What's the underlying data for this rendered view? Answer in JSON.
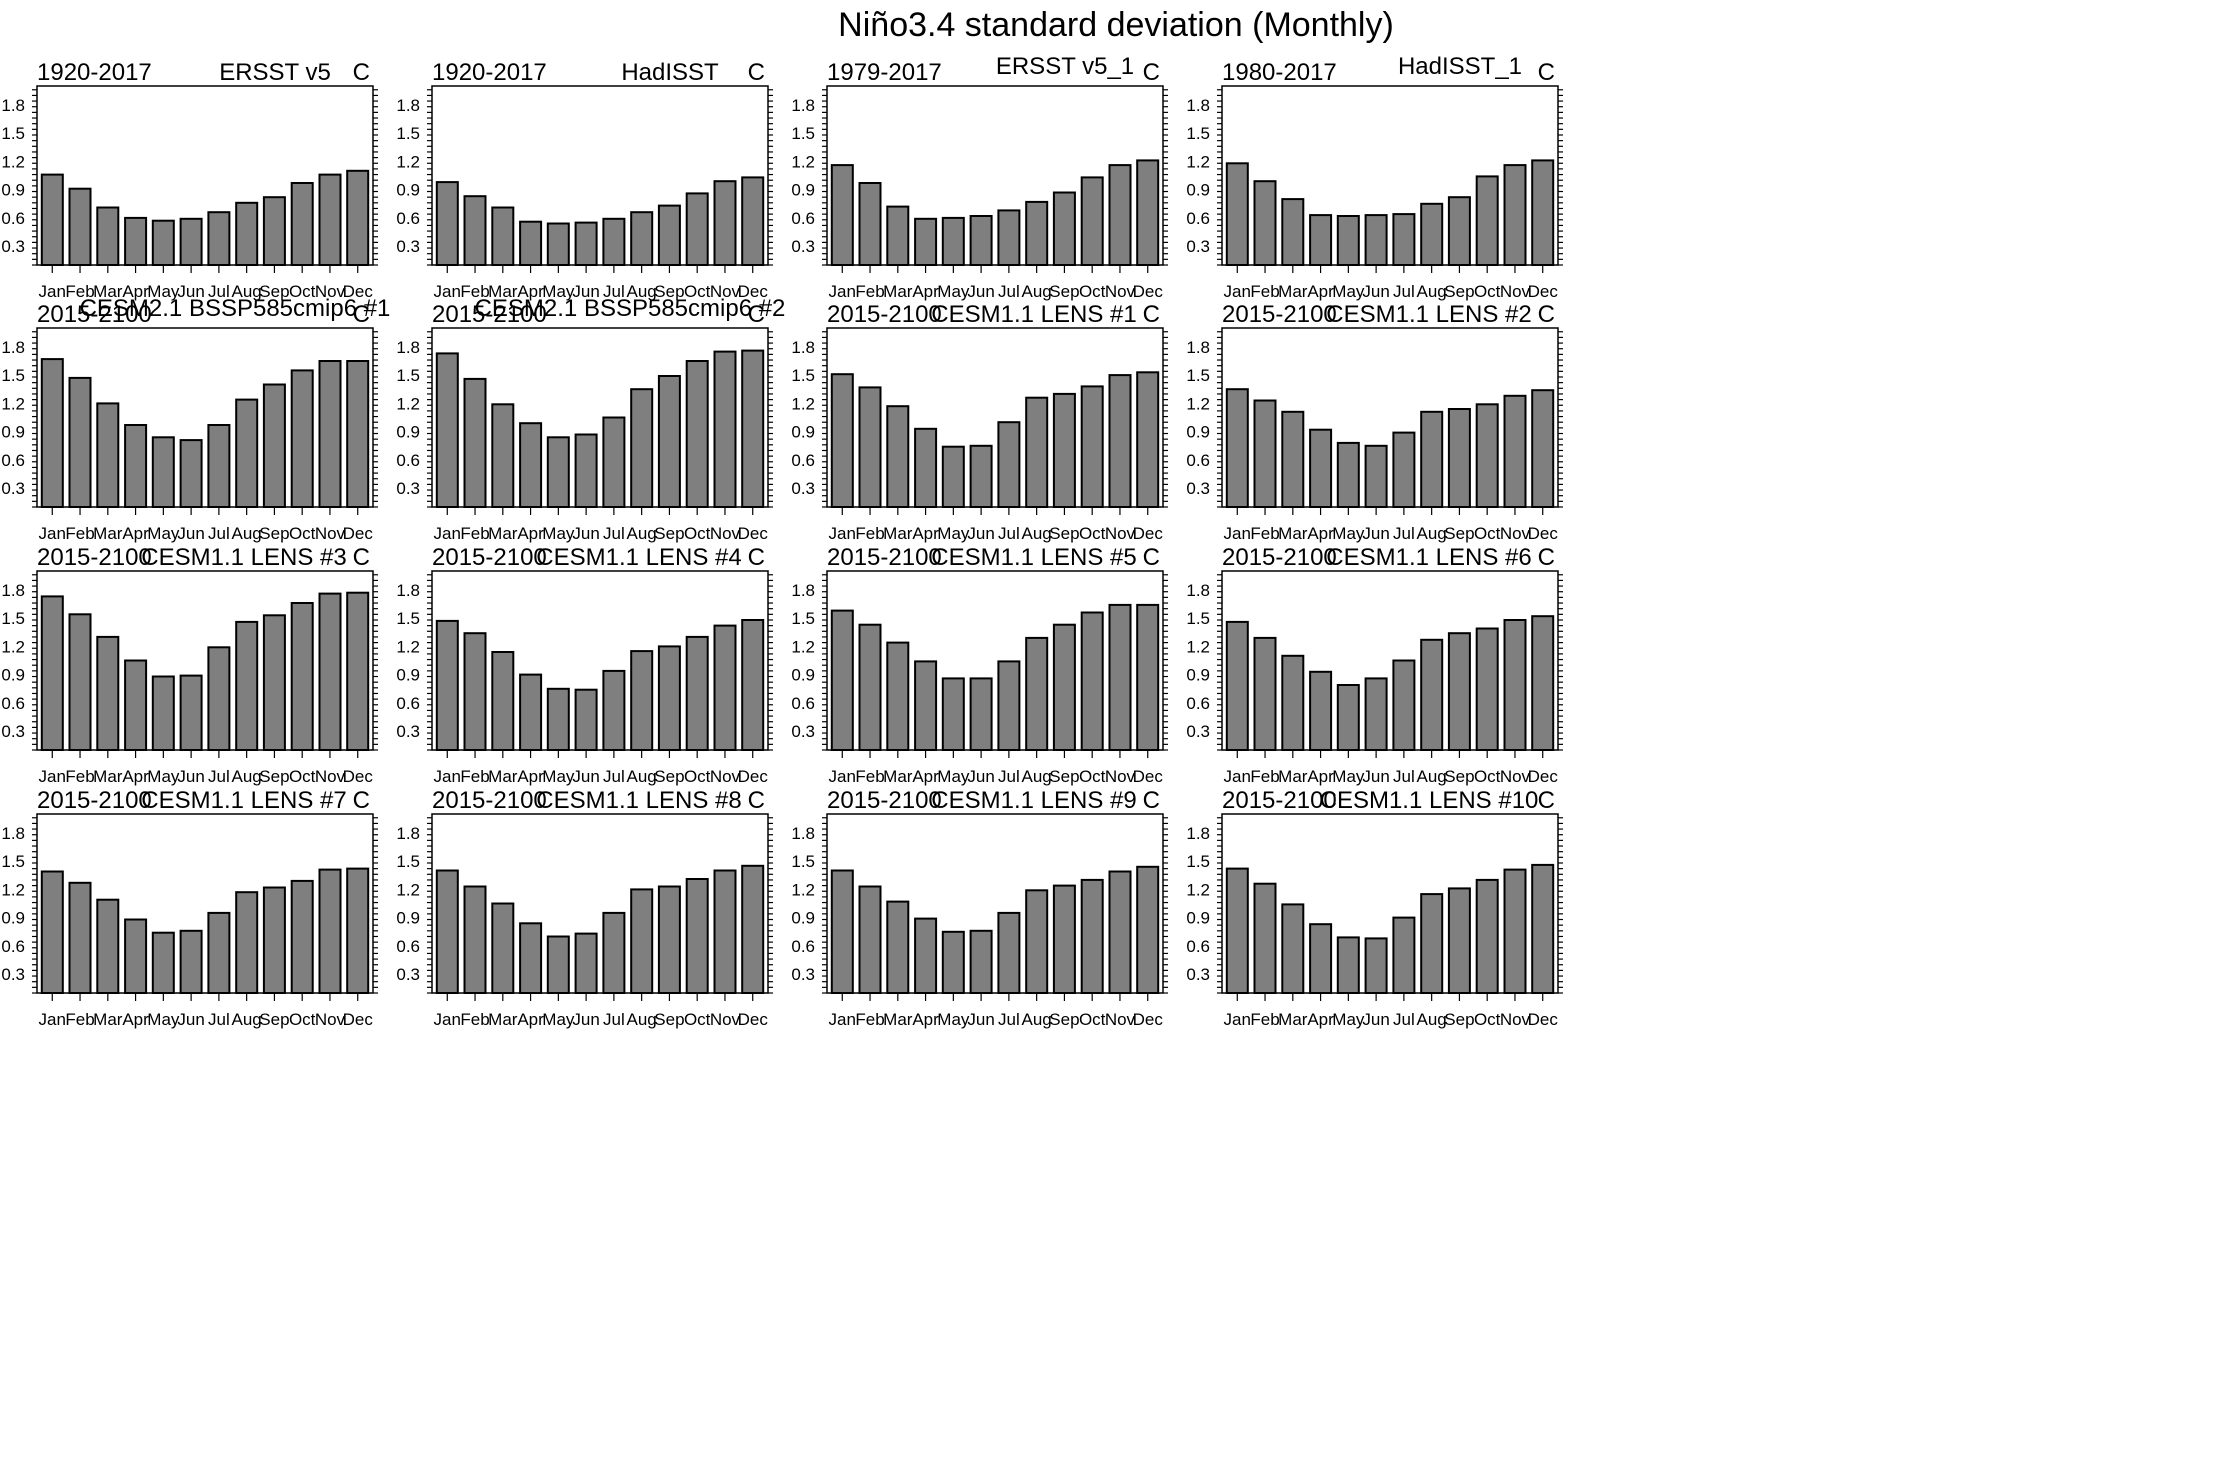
{
  "figure_title": "Niño3.4 standard deviation (Monthly)",
  "colors": {
    "bar_fill": "#7f7f7f",
    "bar_edge": "#000000",
    "frame": "#000000",
    "background": "#ffffff"
  },
  "chart_data": [
    {
      "type": "bar",
      "period": "1920-2017",
      "title": "ERSST v5",
      "units": "C",
      "categories": [
        "Jan",
        "Feb",
        "Mar",
        "Apr",
        "May",
        "Jun",
        "Jul",
        "Aug",
        "Sep",
        "Oct",
        "Nov",
        "Dec"
      ],
      "values": [
        1.06,
        0.91,
        0.71,
        0.6,
        0.57,
        0.59,
        0.66,
        0.76,
        0.82,
        0.97,
        1.06,
        1.1
      ],
      "ylim": [
        0.1,
        2.0
      ],
      "yticks": [
        "0.3",
        "0.6",
        "0.9",
        "1.2",
        "1.5",
        "1.8"
      ]
    },
    {
      "type": "bar",
      "period": "1920-2017",
      "title": "HadISST",
      "units": "C",
      "categories": [
        "Jan",
        "Feb",
        "Mar",
        "Apr",
        "May",
        "Jun",
        "Jul",
        "Aug",
        "Sep",
        "Oct",
        "Nov",
        "Dec"
      ],
      "values": [
        0.98,
        0.83,
        0.71,
        0.56,
        0.54,
        0.55,
        0.59,
        0.66,
        0.73,
        0.86,
        0.99,
        1.03
      ],
      "ylim": [
        0.1,
        2.0
      ],
      "yticks": [
        "0.3",
        "0.6",
        "0.9",
        "1.2",
        "1.5",
        "1.8"
      ]
    },
    {
      "type": "bar",
      "period": "1979-2017",
      "title": "ERSST v5_1",
      "units": "C",
      "categories": [
        "Jan",
        "Feb",
        "Mar",
        "Apr",
        "May",
        "Jun",
        "Jul",
        "Aug",
        "Sep",
        "Oct",
        "Nov",
        "Dec"
      ],
      "values": [
        1.16,
        0.97,
        0.72,
        0.59,
        0.6,
        0.62,
        0.68,
        0.77,
        0.87,
        1.03,
        1.16,
        1.21
      ],
      "ylim": [
        0.1,
        2.0
      ],
      "yticks": [
        "0.3",
        "0.6",
        "0.9",
        "1.2",
        "1.5",
        "1.8"
      ]
    },
    {
      "type": "bar",
      "period": "1980-2017",
      "title": "HadISST_1",
      "units": "C",
      "categories": [
        "Jan",
        "Feb",
        "Mar",
        "Apr",
        "May",
        "Jun",
        "Jul",
        "Aug",
        "Sep",
        "Oct",
        "Nov",
        "Dec"
      ],
      "values": [
        1.18,
        0.99,
        0.8,
        0.63,
        0.62,
        0.63,
        0.64,
        0.75,
        0.82,
        1.04,
        1.16,
        1.21
      ],
      "ylim": [
        0.1,
        2.0
      ],
      "yticks": [
        "0.3",
        "0.6",
        "0.9",
        "1.2",
        "1.5",
        "1.8"
      ]
    },
    {
      "type": "bar",
      "period": "2015-2100",
      "title": "CESM2.1 BSSP585cmip6 #1",
      "units": "C",
      "categories": [
        "Jan",
        "Feb",
        "Mar",
        "Apr",
        "May",
        "Jun",
        "Jul",
        "Aug",
        "Sep",
        "Oct",
        "Nov",
        "Dec"
      ],
      "values": [
        1.67,
        1.47,
        1.2,
        0.97,
        0.84,
        0.81,
        0.97,
        1.24,
        1.4,
        1.55,
        1.65,
        1.65
      ],
      "ylim": [
        0.1,
        2.0
      ],
      "yticks": [
        "0.3",
        "0.6",
        "0.9",
        "1.2",
        "1.5",
        "1.8"
      ]
    },
    {
      "type": "bar",
      "period": "2015-2100",
      "title": "CESM2.1 BSSP585cmip6 #2",
      "units": "C",
      "categories": [
        "Jan",
        "Feb",
        "Mar",
        "Apr",
        "May",
        "Jun",
        "Jul",
        "Aug",
        "Sep",
        "Oct",
        "Nov",
        "Dec"
      ],
      "values": [
        1.73,
        1.46,
        1.19,
        0.99,
        0.84,
        0.87,
        1.05,
        1.35,
        1.49,
        1.65,
        1.75,
        1.76
      ],
      "ylim": [
        0.1,
        2.0
      ],
      "yticks": [
        "0.3",
        "0.6",
        "0.9",
        "1.2",
        "1.5",
        "1.8"
      ]
    },
    {
      "type": "bar",
      "period": "2015-2100",
      "title": "CESM1.1 LENS #1",
      "units": "C",
      "categories": [
        "Jan",
        "Feb",
        "Mar",
        "Apr",
        "May",
        "Jun",
        "Jul",
        "Aug",
        "Sep",
        "Oct",
        "Nov",
        "Dec"
      ],
      "values": [
        1.51,
        1.37,
        1.17,
        0.93,
        0.74,
        0.75,
        1.0,
        1.26,
        1.3,
        1.38,
        1.5,
        1.53
      ],
      "ylim": [
        0.1,
        2.0
      ],
      "yticks": [
        "0.3",
        "0.6",
        "0.9",
        "1.2",
        "1.5",
        "1.8"
      ]
    },
    {
      "type": "bar",
      "period": "2015-2100",
      "title": "CESM1.1 LENS #2",
      "units": "C",
      "categories": [
        "Jan",
        "Feb",
        "Mar",
        "Apr",
        "May",
        "Jun",
        "Jul",
        "Aug",
        "Sep",
        "Oct",
        "Nov",
        "Dec"
      ],
      "values": [
        1.35,
        1.23,
        1.11,
        0.92,
        0.78,
        0.75,
        0.89,
        1.11,
        1.14,
        1.19,
        1.28,
        1.34
      ],
      "ylim": [
        0.1,
        2.0
      ],
      "yticks": [
        "0.3",
        "0.6",
        "0.9",
        "1.2",
        "1.5",
        "1.8"
      ]
    },
    {
      "type": "bar",
      "period": "2015-2100",
      "title": "CESM1.1 LENS #3",
      "units": "C",
      "categories": [
        "Jan",
        "Feb",
        "Mar",
        "Apr",
        "May",
        "Jun",
        "Jul",
        "Aug",
        "Sep",
        "Oct",
        "Nov",
        "Dec"
      ],
      "values": [
        1.73,
        1.54,
        1.3,
        1.05,
        0.88,
        0.89,
        1.19,
        1.46,
        1.53,
        1.66,
        1.76,
        1.77
      ],
      "ylim": [
        0.1,
        2.0
      ],
      "yticks": [
        "0.3",
        "0.6",
        "0.9",
        "1.2",
        "1.5",
        "1.8"
      ]
    },
    {
      "type": "bar",
      "period": "2015-2100",
      "title": "CESM1.1 LENS #4",
      "units": "C",
      "categories": [
        "Jan",
        "Feb",
        "Mar",
        "Apr",
        "May",
        "Jun",
        "Jul",
        "Aug",
        "Sep",
        "Oct",
        "Nov",
        "Dec"
      ],
      "values": [
        1.47,
        1.34,
        1.14,
        0.9,
        0.75,
        0.74,
        0.94,
        1.15,
        1.2,
        1.3,
        1.42,
        1.48
      ],
      "ylim": [
        0.1,
        2.0
      ],
      "yticks": [
        "0.3",
        "0.6",
        "0.9",
        "1.2",
        "1.5",
        "1.8"
      ]
    },
    {
      "type": "bar",
      "period": "2015-2100",
      "title": "CESM1.1 LENS #5",
      "units": "C",
      "categories": [
        "Jan",
        "Feb",
        "Mar",
        "Apr",
        "May",
        "Jun",
        "Jul",
        "Aug",
        "Sep",
        "Oct",
        "Nov",
        "Dec"
      ],
      "values": [
        1.58,
        1.43,
        1.24,
        1.04,
        0.86,
        0.86,
        1.04,
        1.29,
        1.43,
        1.56,
        1.64,
        1.64
      ],
      "ylim": [
        0.1,
        2.0
      ],
      "yticks": [
        "0.3",
        "0.6",
        "0.9",
        "1.2",
        "1.5",
        "1.8"
      ]
    },
    {
      "type": "bar",
      "period": "2015-2100",
      "title": "CESM1.1 LENS #6",
      "units": "C",
      "categories": [
        "Jan",
        "Feb",
        "Mar",
        "Apr",
        "May",
        "Jun",
        "Jul",
        "Aug",
        "Sep",
        "Oct",
        "Nov",
        "Dec"
      ],
      "values": [
        1.46,
        1.29,
        1.1,
        0.93,
        0.79,
        0.86,
        1.05,
        1.27,
        1.34,
        1.39,
        1.48,
        1.52
      ],
      "ylim": [
        0.1,
        2.0
      ],
      "yticks": [
        "0.3",
        "0.6",
        "0.9",
        "1.2",
        "1.5",
        "1.8"
      ]
    },
    {
      "type": "bar",
      "period": "2015-2100",
      "title": "CESM1.1 LENS #7",
      "units": "C",
      "categories": [
        "Jan",
        "Feb",
        "Mar",
        "Apr",
        "May",
        "Jun",
        "Jul",
        "Aug",
        "Sep",
        "Oct",
        "Nov",
        "Dec"
      ],
      "values": [
        1.39,
        1.27,
        1.09,
        0.88,
        0.74,
        0.76,
        0.95,
        1.17,
        1.22,
        1.29,
        1.41,
        1.42
      ],
      "ylim": [
        0.1,
        2.0
      ],
      "yticks": [
        "0.3",
        "0.6",
        "0.9",
        "1.2",
        "1.5",
        "1.8"
      ]
    },
    {
      "type": "bar",
      "period": "2015-2100",
      "title": "CESM1.1 LENS #8",
      "units": "C",
      "categories": [
        "Jan",
        "Feb",
        "Mar",
        "Apr",
        "May",
        "Jun",
        "Jul",
        "Aug",
        "Sep",
        "Oct",
        "Nov",
        "Dec"
      ],
      "values": [
        1.4,
        1.23,
        1.05,
        0.84,
        0.7,
        0.73,
        0.95,
        1.2,
        1.23,
        1.31,
        1.4,
        1.45
      ],
      "ylim": [
        0.1,
        2.0
      ],
      "yticks": [
        "0.3",
        "0.6",
        "0.9",
        "1.2",
        "1.5",
        "1.8"
      ]
    },
    {
      "type": "bar",
      "period": "2015-2100",
      "title": "CESM1.1 LENS #9",
      "units": "C",
      "categories": [
        "Jan",
        "Feb",
        "Mar",
        "Apr",
        "May",
        "Jun",
        "Jul",
        "Aug",
        "Sep",
        "Oct",
        "Nov",
        "Dec"
      ],
      "values": [
        1.4,
        1.23,
        1.07,
        0.89,
        0.75,
        0.76,
        0.95,
        1.19,
        1.24,
        1.3,
        1.39,
        1.44
      ],
      "ylim": [
        0.1,
        2.0
      ],
      "yticks": [
        "0.3",
        "0.6",
        "0.9",
        "1.2",
        "1.5",
        "1.8"
      ]
    },
    {
      "type": "bar",
      "period": "2015-2100",
      "title": "CESM1.1 LENS #10",
      "units": "C",
      "categories": [
        "Jan",
        "Feb",
        "Mar",
        "Apr",
        "May",
        "Jun",
        "Jul",
        "Aug",
        "Sep",
        "Oct",
        "Nov",
        "Dec"
      ],
      "values": [
        1.42,
        1.26,
        1.04,
        0.83,
        0.69,
        0.68,
        0.9,
        1.15,
        1.21,
        1.3,
        1.41,
        1.46
      ],
      "ylim": [
        0.1,
        2.0
      ],
      "yticks": [
        "0.3",
        "0.6",
        "0.9",
        "1.2",
        "1.5",
        "1.8"
      ]
    }
  ]
}
